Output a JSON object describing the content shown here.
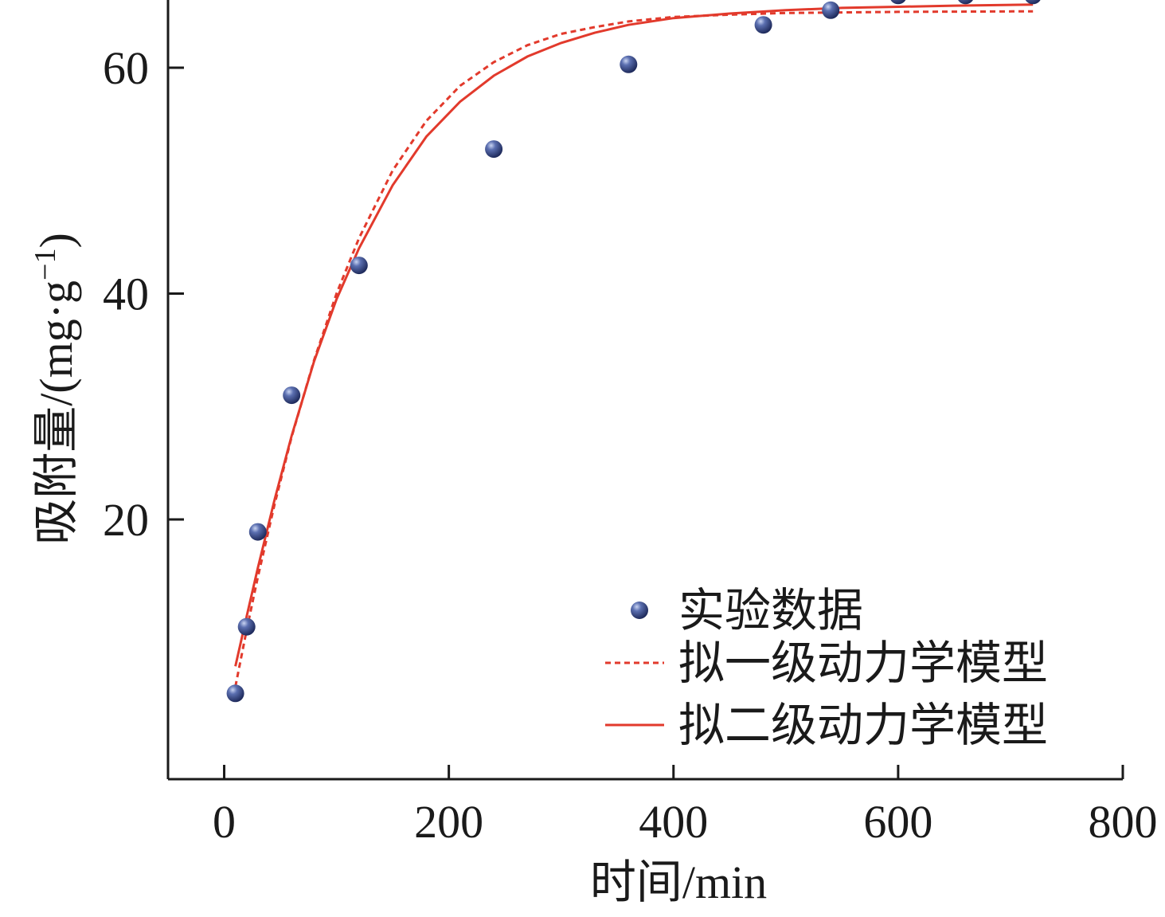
{
  "chart_data": {
    "type": "scatter",
    "xlabel": "时间/min",
    "ylabel": "吸附量/(mg·g",
    "ylabel_sup": "−1",
    "ylabel_close": ")",
    "xlim": [
      -50,
      800
    ],
    "ylim": [
      -3,
      66
    ],
    "x_ticks": [
      0,
      200,
      400,
      600,
      800
    ],
    "x_tick_labels": [
      "0",
      "200",
      "400",
      "600",
      "800"
    ],
    "y_ticks": [
      20,
      40,
      60
    ],
    "y_tick_labels": [
      "20",
      "40",
      "60"
    ],
    "grid": false,
    "legend_position": "bottom-right",
    "series": [
      {
        "name": "实验数据",
        "kind": "points",
        "color": "#3a4f8f",
        "x": [
          10,
          20,
          30,
          60,
          120,
          240,
          360,
          480,
          540,
          600,
          660,
          720
        ],
        "y": [
          4.6,
          10.5,
          18.9,
          31.0,
          42.5,
          52.8,
          60.3,
          63.8,
          65.1,
          66.4,
          66.4,
          66.4
        ]
      },
      {
        "name": "拟一级动力学模型",
        "kind": "line",
        "style": "dashed",
        "color": "#e23a2c",
        "x": [
          10,
          20,
          30,
          45,
          60,
          80,
          100,
          120,
          150,
          180,
          210,
          240,
          270,
          300,
          330,
          360,
          400,
          450,
          500,
          550,
          600,
          650,
          720
        ],
        "y": [
          5.2,
          10.2,
          14.9,
          21.4,
          27.3,
          34.1,
          40.0,
          44.9,
          50.9,
          55.3,
          58.4,
          60.5,
          62.0,
          63.0,
          63.6,
          64.1,
          64.5,
          64.7,
          64.85,
          64.9,
          64.95,
          64.97,
          65.0
        ]
      },
      {
        "name": "拟二级动力学模型",
        "kind": "line",
        "style": "solid",
        "color": "#e23a2c",
        "x": [
          10,
          20,
          30,
          45,
          60,
          80,
          100,
          120,
          150,
          180,
          210,
          240,
          270,
          300,
          330,
          360,
          400,
          450,
          500,
          550,
          600,
          650,
          720
        ],
        "y": [
          7.0,
          11.4,
          15.7,
          21.8,
          27.4,
          34.0,
          39.5,
          44.0,
          49.6,
          53.9,
          57.0,
          59.3,
          61.0,
          62.2,
          63.1,
          63.8,
          64.4,
          64.8,
          65.1,
          65.3,
          65.4,
          65.5,
          65.6
        ]
      }
    ]
  }
}
